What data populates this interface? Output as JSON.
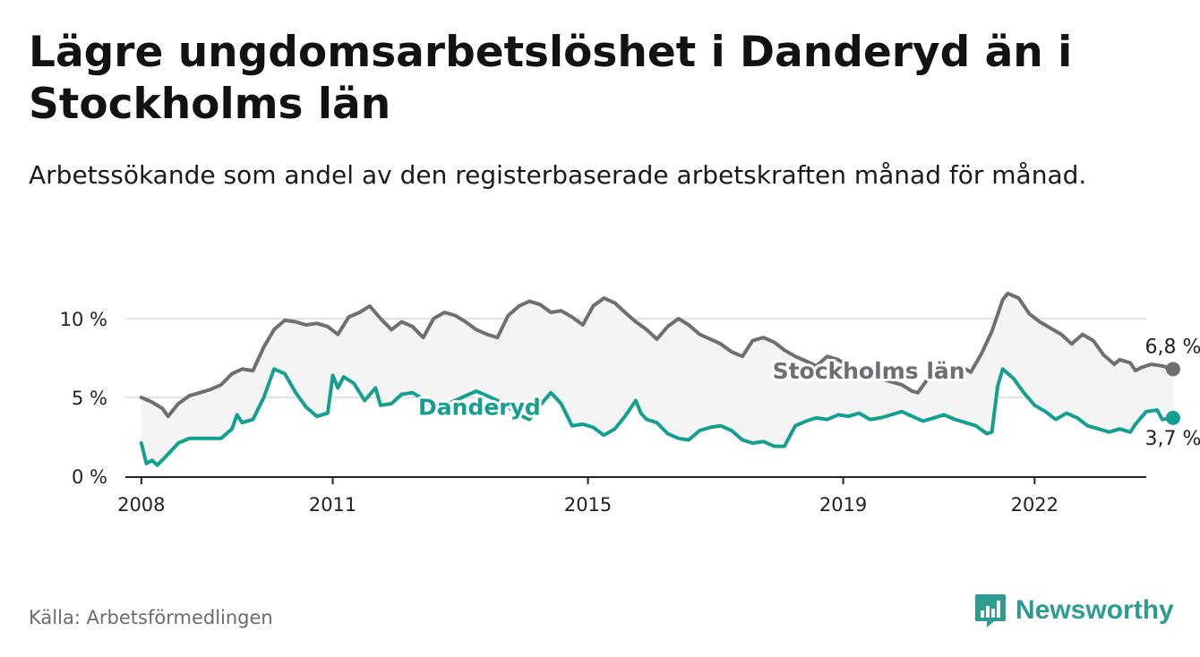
{
  "chart_data": {
    "type": "line",
    "title": "Lägre ungdomsarbetslöshet i Danderyd än i Stockholms län",
    "subtitle": "Arbetssökande som andel av den registerbaserade arbetskraften månad för månad.",
    "xlabel": "",
    "ylabel": "",
    "xlim": [
      2007.75,
      2023.75
    ],
    "ylim": [
      0,
      10
    ],
    "x_ticks": [
      2008,
      2011,
      2015,
      2019,
      2022
    ],
    "x_tick_labels": [
      "2008",
      "2011",
      "2015",
      "2019",
      "2022"
    ],
    "y_ticks": [
      0,
      5,
      10
    ],
    "y_tick_labels": [
      "0 %",
      "5 %",
      "10 %"
    ],
    "grid": true,
    "series": [
      {
        "name": "Stockholms län",
        "color": "#6e6e73",
        "end_label": "6,8 %",
        "points": [
          [
            2008.0,
            5.0
          ],
          [
            2008.17,
            4.7
          ],
          [
            2008.33,
            4.3
          ],
          [
            2008.42,
            3.8
          ],
          [
            2008.58,
            4.6
          ],
          [
            2008.75,
            5.1
          ],
          [
            2008.92,
            5.3
          ],
          [
            2009.08,
            5.5
          ],
          [
            2009.25,
            5.8
          ],
          [
            2009.42,
            6.5
          ],
          [
            2009.58,
            6.8
          ],
          [
            2009.75,
            6.7
          ],
          [
            2009.92,
            8.2
          ],
          [
            2010.08,
            9.3
          ],
          [
            2010.25,
            9.9
          ],
          [
            2010.42,
            9.8
          ],
          [
            2010.58,
            9.6
          ],
          [
            2010.75,
            9.7
          ],
          [
            2010.92,
            9.5
          ],
          [
            2011.08,
            9.0
          ],
          [
            2011.25,
            10.1
          ],
          [
            2011.42,
            10.4
          ],
          [
            2011.58,
            10.8
          ],
          [
            2011.75,
            10.0
          ],
          [
            2011.92,
            9.3
          ],
          [
            2012.08,
            9.8
          ],
          [
            2012.25,
            9.5
          ],
          [
            2012.42,
            8.8
          ],
          [
            2012.58,
            10.0
          ],
          [
            2012.75,
            10.4
          ],
          [
            2012.92,
            10.2
          ],
          [
            2013.08,
            9.8
          ],
          [
            2013.25,
            9.3
          ],
          [
            2013.42,
            9.0
          ],
          [
            2013.58,
            8.8
          ],
          [
            2013.75,
            10.2
          ],
          [
            2013.92,
            10.8
          ],
          [
            2014.08,
            11.1
          ],
          [
            2014.25,
            10.9
          ],
          [
            2014.42,
            10.4
          ],
          [
            2014.58,
            10.5
          ],
          [
            2014.75,
            10.1
          ],
          [
            2014.92,
            9.6
          ],
          [
            2015.08,
            10.8
          ],
          [
            2015.25,
            11.3
          ],
          [
            2015.42,
            11.0
          ],
          [
            2015.58,
            10.4
          ],
          [
            2015.75,
            9.8
          ],
          [
            2015.92,
            9.3
          ],
          [
            2016.08,
            8.7
          ],
          [
            2016.25,
            9.5
          ],
          [
            2016.42,
            10.0
          ],
          [
            2016.58,
            9.6
          ],
          [
            2016.75,
            9.0
          ],
          [
            2016.92,
            8.7
          ],
          [
            2017.08,
            8.4
          ],
          [
            2017.25,
            7.9
          ],
          [
            2017.42,
            7.6
          ],
          [
            2017.58,
            8.6
          ],
          [
            2017.75,
            8.8
          ],
          [
            2017.92,
            8.5
          ],
          [
            2018.08,
            8.0
          ],
          [
            2018.25,
            7.6
          ],
          [
            2018.42,
            7.3
          ],
          [
            2018.58,
            7.0
          ],
          [
            2018.75,
            7.6
          ],
          [
            2018.92,
            7.4
          ],
          [
            2019.08,
            7.0
          ],
          [
            2019.25,
            6.6
          ],
          [
            2019.42,
            6.4
          ],
          [
            2019.58,
            6.2
          ],
          [
            2019.75,
            6.0
          ],
          [
            2019.92,
            5.8
          ],
          [
            2020.08,
            5.4
          ],
          [
            2020.17,
            5.3
          ],
          [
            2020.33,
            6.2
          ],
          [
            2020.5,
            6.5
          ],
          [
            2020.67,
            6.6
          ],
          [
            2020.83,
            6.5
          ],
          [
            2020.92,
            6.8
          ],
          [
            2021.0,
            6.6
          ],
          [
            2021.17,
            7.8
          ],
          [
            2021.33,
            9.2
          ],
          [
            2021.5,
            11.2
          ],
          [
            2021.58,
            11.6
          ],
          [
            2021.75,
            11.3
          ],
          [
            2021.92,
            10.3
          ],
          [
            2022.08,
            9.8
          ],
          [
            2022.25,
            9.4
          ],
          [
            2022.42,
            9.0
          ],
          [
            2022.58,
            8.4
          ],
          [
            2022.75,
            9.0
          ],
          [
            2022.92,
            8.6
          ],
          [
            2023.08,
            7.7
          ],
          [
            2023.25,
            7.1
          ],
          [
            2023.33,
            7.4
          ],
          [
            2023.5,
            7.2
          ],
          [
            2023.58,
            6.7
          ],
          [
            2023.67,
            6.9
          ],
          [
            2023.83,
            7.1
          ],
          [
            2024.0,
            7.0
          ],
          [
            2024.17,
            6.8
          ]
        ]
      },
      {
        "name": "Danderyd",
        "color": "#14a091",
        "end_label": "3,7 %",
        "points": [
          [
            2008.0,
            2.1
          ],
          [
            2008.08,
            0.8
          ],
          [
            2008.17,
            1.0
          ],
          [
            2008.25,
            0.7
          ],
          [
            2008.42,
            1.4
          ],
          [
            2008.58,
            2.1
          ],
          [
            2008.75,
            2.4
          ],
          [
            2008.92,
            2.4
          ],
          [
            2009.08,
            2.4
          ],
          [
            2009.25,
            2.4
          ],
          [
            2009.42,
            3.0
          ],
          [
            2009.5,
            3.9
          ],
          [
            2009.58,
            3.4
          ],
          [
            2009.75,
            3.6
          ],
          [
            2009.92,
            5.0
          ],
          [
            2010.08,
            6.8
          ],
          [
            2010.25,
            6.5
          ],
          [
            2010.42,
            5.3
          ],
          [
            2010.58,
            4.4
          ],
          [
            2010.75,
            3.8
          ],
          [
            2010.92,
            4.0
          ],
          [
            2011.0,
            6.4
          ],
          [
            2011.08,
            5.6
          ],
          [
            2011.17,
            6.3
          ],
          [
            2011.33,
            5.9
          ],
          [
            2011.5,
            4.8
          ],
          [
            2011.67,
            5.6
          ],
          [
            2011.75,
            4.5
          ],
          [
            2011.92,
            4.6
          ],
          [
            2012.08,
            5.2
          ],
          [
            2012.25,
            5.3
          ],
          [
            2012.42,
            4.9
          ],
          [
            2012.58,
            4.3
          ],
          [
            2012.75,
            4.5
          ],
          [
            2012.92,
            4.8
          ],
          [
            2013.08,
            5.1
          ],
          [
            2013.25,
            5.4
          ],
          [
            2013.42,
            5.1
          ],
          [
            2013.58,
            4.8
          ],
          [
            2013.75,
            4.4
          ],
          [
            2013.92,
            3.9
          ],
          [
            2014.08,
            3.6
          ],
          [
            2014.25,
            4.5
          ],
          [
            2014.42,
            5.3
          ],
          [
            2014.58,
            4.6
          ],
          [
            2014.75,
            3.2
          ],
          [
            2014.92,
            3.3
          ],
          [
            2015.08,
            3.1
          ],
          [
            2015.25,
            2.6
          ],
          [
            2015.42,
            3.0
          ],
          [
            2015.58,
            3.8
          ],
          [
            2015.75,
            4.8
          ],
          [
            2015.83,
            4.0
          ],
          [
            2015.92,
            3.6
          ],
          [
            2016.08,
            3.4
          ],
          [
            2016.25,
            2.7
          ],
          [
            2016.42,
            2.4
          ],
          [
            2016.58,
            2.3
          ],
          [
            2016.75,
            2.9
          ],
          [
            2016.92,
            3.1
          ],
          [
            2017.08,
            3.2
          ],
          [
            2017.25,
            2.9
          ],
          [
            2017.42,
            2.3
          ],
          [
            2017.58,
            2.1
          ],
          [
            2017.75,
            2.2
          ],
          [
            2017.92,
            1.9
          ],
          [
            2018.08,
            1.9
          ],
          [
            2018.25,
            3.2
          ],
          [
            2018.42,
            3.5
          ],
          [
            2018.58,
            3.7
          ],
          [
            2018.75,
            3.6
          ],
          [
            2018.92,
            3.9
          ],
          [
            2019.08,
            3.8
          ],
          [
            2019.25,
            4.0
          ],
          [
            2019.42,
            3.6
          ],
          [
            2019.58,
            3.7
          ],
          [
            2019.75,
            3.9
          ],
          [
            2019.92,
            4.1
          ],
          [
            2020.08,
            3.8
          ],
          [
            2020.25,
            3.5
          ],
          [
            2020.42,
            3.7
          ],
          [
            2020.58,
            3.9
          ],
          [
            2020.75,
            3.6
          ],
          [
            2020.92,
            3.4
          ],
          [
            2021.08,
            3.2
          ],
          [
            2021.25,
            2.7
          ],
          [
            2021.33,
            2.8
          ],
          [
            2021.42,
            5.7
          ],
          [
            2021.5,
            6.8
          ],
          [
            2021.67,
            6.2
          ],
          [
            2021.83,
            5.3
          ],
          [
            2022.0,
            4.5
          ],
          [
            2022.17,
            4.1
          ],
          [
            2022.33,
            3.6
          ],
          [
            2022.5,
            4.0
          ],
          [
            2022.67,
            3.7
          ],
          [
            2022.83,
            3.2
          ],
          [
            2023.0,
            3.0
          ],
          [
            2023.17,
            2.8
          ],
          [
            2023.33,
            3.0
          ],
          [
            2023.5,
            2.8
          ],
          [
            2023.58,
            3.3
          ],
          [
            2023.75,
            4.1
          ],
          [
            2023.92,
            4.2
          ],
          [
            2024.0,
            3.6
          ],
          [
            2024.17,
            3.7
          ]
        ]
      }
    ]
  },
  "footer": {
    "source": "Källa: Arbetsförmedlingen",
    "brand": "Newsworthy"
  }
}
